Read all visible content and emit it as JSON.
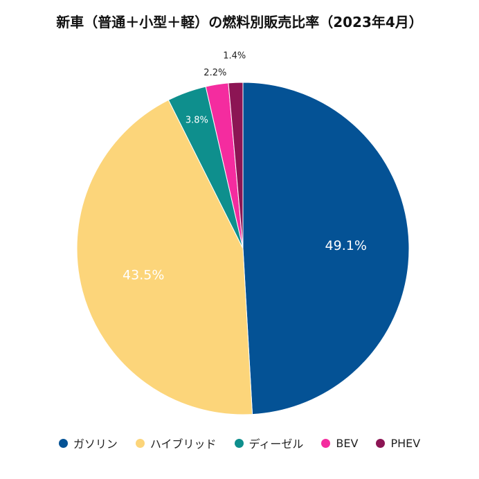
{
  "chart_data": {
    "type": "pie",
    "title": "新車（普通＋小型＋軽）の燃料別販売比率（2023年4月）",
    "categories": [
      "ガソリン",
      "ハイブリッド",
      "ディーゼル",
      "BEV",
      "PHEV"
    ],
    "values": [
      49.1,
      43.5,
      3.8,
      2.2,
      1.4
    ],
    "labels": [
      "49.1%",
      "43.5%",
      "3.8%",
      "2.2%",
      "1.4%"
    ],
    "colors": [
      "#045295",
      "#fcd57a",
      "#0e8f8d",
      "#f42c9f",
      "#8c1554"
    ],
    "label_colors": [
      "#ffffff",
      "#ffffff",
      "#ffffff",
      "#222222",
      "#222222"
    ],
    "start_angle": "12 o'clock",
    "direction": "clockwise",
    "legend_position": "bottom"
  }
}
